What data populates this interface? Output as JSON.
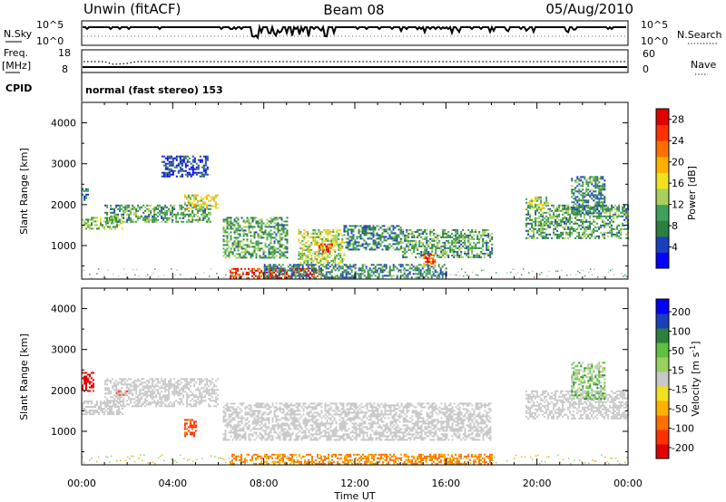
{
  "header": {
    "station": "Unwin (fitACF)",
    "beam": "Beam 08",
    "date": "05/Aug/2010"
  },
  "status_panel": {
    "left_labels": [
      "N.Sky",
      "Freq.",
      "[MHz]",
      "CPID"
    ],
    "right_labels": [
      "N.Search",
      "Nave"
    ],
    "nsky_ticks": [
      "10^5",
      "10^0"
    ],
    "nsearch_ticks": [
      "10^5",
      "10^0"
    ],
    "freq_ticks": [
      "18",
      "8"
    ],
    "nave_ticks": [
      "60",
      "0"
    ],
    "cpid_text": "normal (fast stereo) 153"
  },
  "chart_data": [
    {
      "type": "heatmap",
      "name": "power",
      "ylabel": "Slant Range [km]",
      "xlim": [
        0,
        24
      ],
      "ylim": [
        180,
        4500
      ],
      "yticks": [
        "4000",
        "3000",
        "2000",
        "1000"
      ],
      "colorbar": {
        "label": "Power [dB]",
        "ticks": [
          "28",
          "24",
          "20",
          "16",
          "12",
          "8",
          "4"
        ],
        "colors": [
          "#0000ff",
          "#1c3fbf",
          "#2d7f3d",
          "#3ea05a",
          "#a8d05a",
          "#f0e020",
          "#ffb000",
          "#ff7000",
          "#ff3000",
          "#e00000"
        ]
      },
      "echo_regions": [
        {
          "t": [
            0.0,
            1.8
          ],
          "r": [
            1400,
            1700
          ],
          "level": 12
        },
        {
          "t": [
            0.0,
            0.3
          ],
          "r": [
            2100,
            2400
          ],
          "level": 8
        },
        {
          "t": [
            1.0,
            5.7
          ],
          "r": [
            1600,
            2000
          ],
          "level": 10
        },
        {
          "t": [
            4.5,
            6.0
          ],
          "r": [
            1900,
            2250
          ],
          "level": 16
        },
        {
          "t": [
            3.5,
            5.5
          ],
          "r": [
            2700,
            3200
          ],
          "level": 4
        },
        {
          "t": [
            6.2,
            9.0
          ],
          "r": [
            700,
            1700
          ],
          "level": 10
        },
        {
          "t": [
            9.5,
            11.5
          ],
          "r": [
            600,
            1400
          ],
          "level": 14
        },
        {
          "t": [
            10.4,
            11.0
          ],
          "r": [
            850,
            1050
          ],
          "level": 26
        },
        {
          "t": [
            11.5,
            14.0
          ],
          "r": [
            900,
            1500
          ],
          "level": 8
        },
        {
          "t": [
            14.0,
            18.0
          ],
          "r": [
            700,
            1400
          ],
          "level": 10
        },
        {
          "t": [
            15.0,
            15.5
          ],
          "r": [
            500,
            800
          ],
          "level": 24
        },
        {
          "t": [
            6.5,
            10.5
          ],
          "r": [
            200,
            450
          ],
          "level": 26
        },
        {
          "t": [
            8.0,
            16.0
          ],
          "r": [
            200,
            550
          ],
          "level": 8
        },
        {
          "t": [
            19.5,
            24.0
          ],
          "r": [
            1200,
            2000
          ],
          "level": 10
        },
        {
          "t": [
            21.5,
            23.0
          ],
          "r": [
            1800,
            2700
          ],
          "level": 8
        },
        {
          "t": [
            19.5,
            20.5
          ],
          "r": [
            1900,
            2200
          ],
          "level": 14
        }
      ]
    },
    {
      "type": "heatmap",
      "name": "velocity",
      "ylabel": "Slant Range [km]",
      "xlabel": "Time UT",
      "xlim": [
        0,
        24
      ],
      "ylim": [
        180,
        4500
      ],
      "xticks": [
        "00:00",
        "04:00",
        "08:00",
        "12:00",
        "16:00",
        "20:00",
        "00:00"
      ],
      "yticks": [
        "4000",
        "3000",
        "2000",
        "1000"
      ],
      "colorbar": {
        "label": "Velocity [m s^-1]",
        "ticks": [
          "200",
          "100",
          "50",
          "15",
          "-15",
          "-50",
          "-100",
          "-200"
        ],
        "colors": [
          "#e00000",
          "#ff3000",
          "#ff7000",
          "#ffb000",
          "#f0e020",
          "#c8c8c8",
          "#9ad060",
          "#5fc040",
          "#2d7f3d",
          "#1c3fbf",
          "#0000ff"
        ]
      },
      "echo_regions": [
        {
          "t": [
            0.0,
            1.8
          ],
          "r": [
            1400,
            1750
          ],
          "level": 0
        },
        {
          "t": [
            0.0,
            0.5
          ],
          "r": [
            2000,
            2450
          ],
          "level": -220
        },
        {
          "t": [
            1.5,
            2.0
          ],
          "r": [
            1900,
            2000
          ],
          "level": -150
        },
        {
          "t": [
            1.0,
            6.0
          ],
          "r": [
            1600,
            2300
          ],
          "level": 0
        },
        {
          "t": [
            4.5,
            5.0
          ],
          "r": [
            900,
            1300
          ],
          "level": -120
        },
        {
          "t": [
            6.2,
            18.0
          ],
          "r": [
            800,
            1700
          ],
          "level": 0
        },
        {
          "t": [
            6.5,
            18.0
          ],
          "r": [
            200,
            450
          ],
          "level": -60
        },
        {
          "t": [
            19.5,
            24.0
          ],
          "r": [
            1300,
            2000
          ],
          "level": 0
        },
        {
          "t": [
            21.5,
            23.0
          ],
          "r": [
            1800,
            2700
          ],
          "level": 30
        }
      ]
    }
  ]
}
